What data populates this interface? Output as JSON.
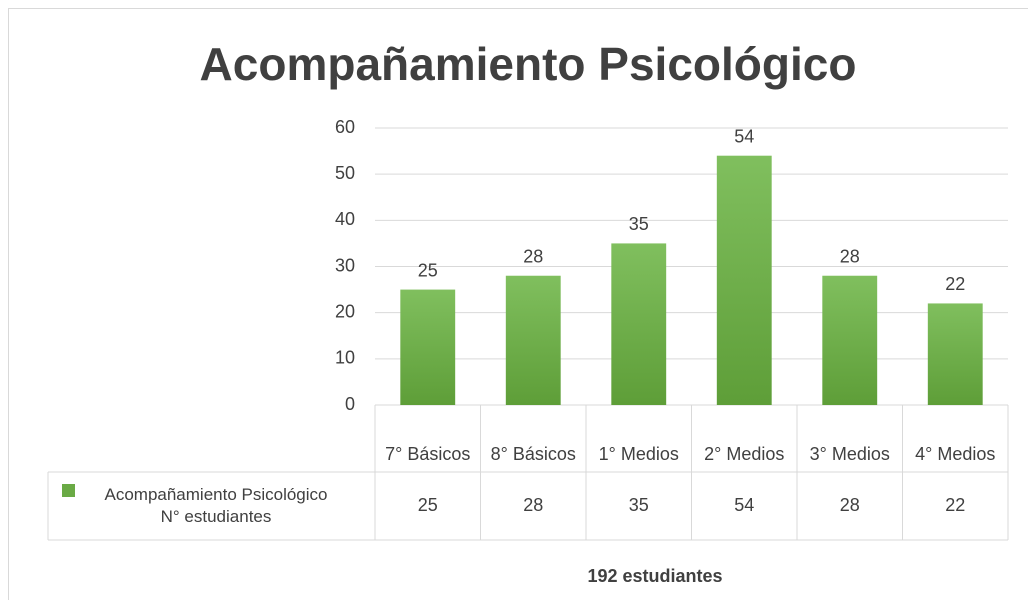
{
  "chart_data": {
    "type": "bar",
    "title": "Acompañamiento Psicológico",
    "categories": [
      "7° Básicos",
      "8° Básicos",
      "1° Medios",
      "2° Medios",
      "3° Medios",
      "4° Medios"
    ],
    "series": [
      {
        "name": "Acompañamiento Psicológico N° estudiantes",
        "color": "#6aaa45",
        "values": [
          25,
          28,
          35,
          54,
          28,
          22
        ]
      }
    ],
    "ylim": [
      0,
      60
    ],
    "yticks": [
      0,
      10,
      20,
      30,
      40,
      50,
      60
    ],
    "grid": true,
    "data_table": true,
    "footer": "192 estudiantes"
  }
}
